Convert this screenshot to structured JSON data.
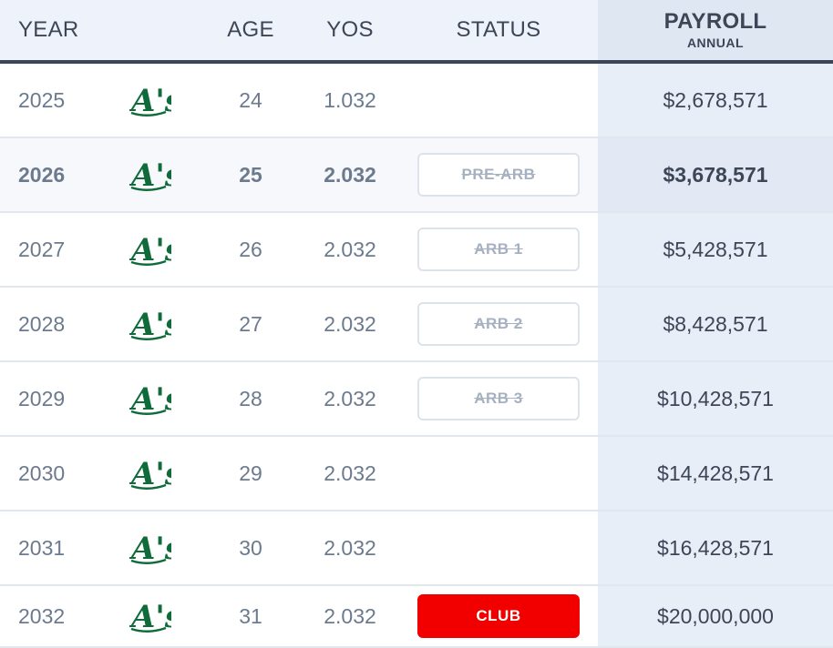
{
  "header": {
    "year": "YEAR",
    "age": "AGE",
    "yos": "YOS",
    "status": "STATUS",
    "payroll": "PAYROLL",
    "payroll_sub": "ANNUAL"
  },
  "colors": {
    "team_green": "#0f6b3a",
    "club_red": "#f20000",
    "header_line": "#3d4656"
  },
  "team_logo": {
    "icon": "athletics-logo-icon",
    "text": "A's"
  },
  "rows": [
    {
      "year": "2025",
      "age": "24",
      "yos": "1.032",
      "status": "",
      "payroll": "$2,678,571",
      "highlight": false
    },
    {
      "year": "2026",
      "age": "25",
      "yos": "2.032",
      "status": "PRE-ARB",
      "payroll": "$3,678,571",
      "highlight": true
    },
    {
      "year": "2027",
      "age": "26",
      "yos": "2.032",
      "status": "ARB 1",
      "payroll": "$5,428,571",
      "highlight": false
    },
    {
      "year": "2028",
      "age": "27",
      "yos": "2.032",
      "status": "ARB 2",
      "payroll": "$8,428,571",
      "highlight": false
    },
    {
      "year": "2029",
      "age": "28",
      "yos": "2.032",
      "status": "ARB 3",
      "payroll": "$10,428,571",
      "highlight": false
    },
    {
      "year": "2030",
      "age": "29",
      "yos": "2.032",
      "status": "",
      "payroll": "$14,428,571",
      "highlight": false
    },
    {
      "year": "2031",
      "age": "30",
      "yos": "2.032",
      "status": "",
      "payroll": "$16,428,571",
      "highlight": false
    },
    {
      "year": "2032",
      "age": "31",
      "yos": "2.032",
      "status": "CLUB",
      "payroll": "$20,000,000",
      "highlight": false
    }
  ]
}
